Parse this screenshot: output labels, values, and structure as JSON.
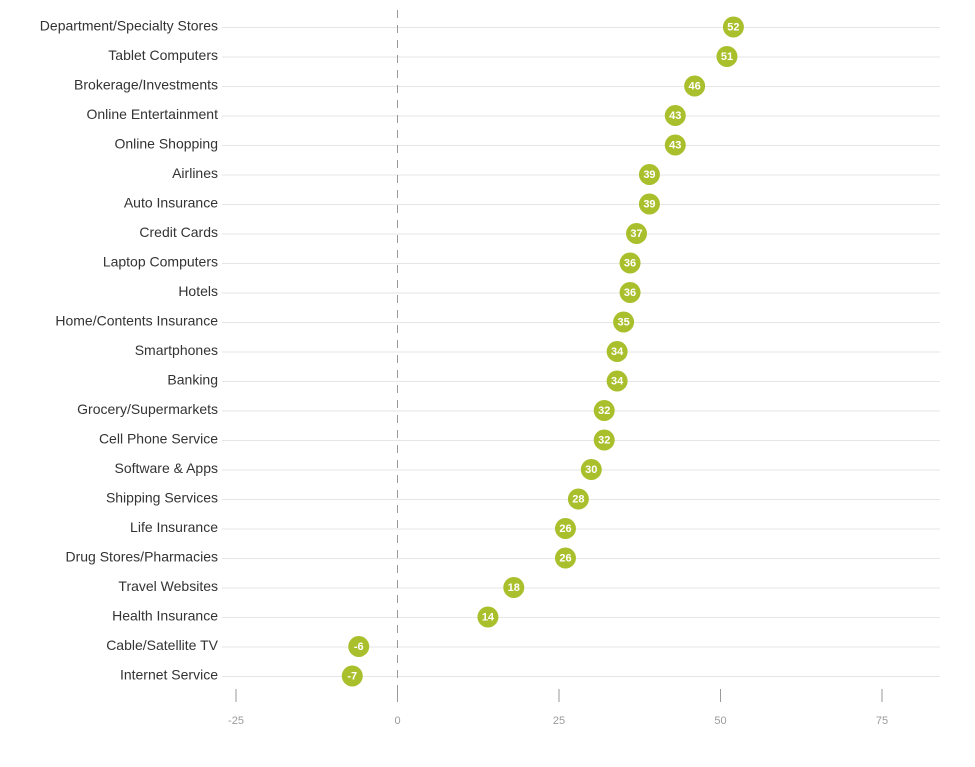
{
  "chart_data": {
    "type": "scatter",
    "categories": [
      "Department/Specialty Stores",
      "Tablet Computers",
      "Brokerage/Investments",
      "Online Entertainment",
      "Online Shopping",
      "Airlines",
      "Auto Insurance",
      "Credit Cards",
      "Laptop Computers",
      "Hotels",
      "Home/Contents Insurance",
      "Smartphones",
      "Banking",
      "Grocery/Supermarkets",
      "Cell Phone Service",
      "Software & Apps",
      "Shipping Services",
      "Life Insurance",
      "Drug Stores/Pharmacies",
      "Travel Websites",
      "Health Insurance",
      "Cable/Satellite TV",
      "Internet Service"
    ],
    "values": [
      52,
      51,
      46,
      43,
      43,
      39,
      39,
      37,
      36,
      36,
      35,
      34,
      34,
      32,
      32,
      30,
      28,
      26,
      26,
      18,
      14,
      -6,
      -7
    ],
    "point_labels": [
      "52",
      "51",
      "46",
      "43",
      "43",
      "39",
      "39",
      "37",
      "36",
      "36",
      "35",
      "34",
      "34",
      "32",
      "32",
      "30",
      "28",
      "26",
      "26",
      "18",
      "14",
      "-6",
      "-7"
    ],
    "x_ticks": [
      -25,
      0,
      25,
      50,
      75
    ],
    "x_tick_labels": [
      "-25",
      "0",
      "25",
      "50",
      "75"
    ],
    "xlim": [
      -25,
      75
    ],
    "title": "",
    "xlabel": "",
    "ylabel": "",
    "grid": true,
    "legend": "none",
    "colors": {
      "point": "#a9bf2c",
      "point_text": "#ffffff",
      "gridline": "#e6e6e6",
      "zero_line": "#9a9a9a",
      "tick": "#9a9a9a",
      "label": "#333333"
    }
  }
}
